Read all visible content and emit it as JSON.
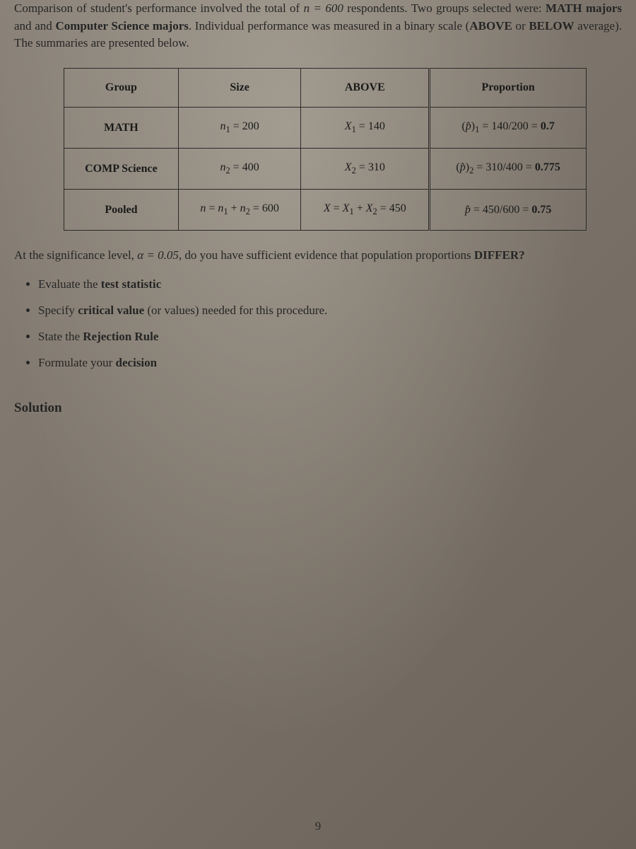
{
  "intro": {
    "prefix": "Comparison of student's performance involved the total of ",
    "n_expr": "n = 600",
    "after_n": " respondents. Two groups selected were: ",
    "group1": "MATH majors",
    "between_groups": " and and ",
    "group2": "Computer Science majors",
    "after_groups": ". Individual performance was measured in a binary scale (",
    "scale1": "ABOVE",
    "scale_or": " or ",
    "scale2": "BELOW",
    "after_scale": " average). The summaries are presented below."
  },
  "table": {
    "headers": {
      "c1": "Group",
      "c2": "Size",
      "c3": "ABOVE",
      "c4": "Proportion"
    },
    "rows": [
      {
        "group": "MATH",
        "size_html": "<span class='ital'>n</span><span class='sub'>1</span> = 200",
        "above_html": "<span class='ital'>X</span><span class='sub'>1</span> = 140",
        "prop_html": "(<span class='ital'>p̂</span>)<span class='sub'>1</span> = 140/200 = <b>0.7</b>"
      },
      {
        "group": "COMP Science",
        "size_html": "<span class='ital'>n</span><span class='sub'>2</span> = 400",
        "above_html": "<span class='ital'>X</span><span class='sub'>2</span> = 310",
        "prop_html": "(<span class='ital'>p̂</span>)<span class='sub'>2</span> = 310/400 = <b>0.775</b>"
      },
      {
        "group": "Pooled",
        "size_html": "<span class='ital'>n</span> = <span class='ital'>n</span><span class='sub'>1</span> + <span class='ital'>n</span><span class='sub'>2</span> = 600",
        "above_html": "<span class='ital'>X</span> = <span class='ital'>X</span><span class='sub'>1</span> + <span class='ital'>X</span><span class='sub'>2</span> = 450",
        "prop_html": "<span class='ital'>p̂</span> = 450/600 = <b>0.75</b>"
      }
    ]
  },
  "question": {
    "prefix": "At the significance level, ",
    "alpha": "α = 0.05",
    "after_alpha": ", do you have sufficient evidence that population proportions ",
    "differ": "DIFFER?",
    "tasks": [
      {
        "pre": "Evaluate the ",
        "bold": "test statistic",
        "post": ""
      },
      {
        "pre": "Specify ",
        "bold": "critical value",
        "post": " (or values) needed for this procedure."
      },
      {
        "pre": "State the ",
        "bold": "Rejection Rule",
        "post": ""
      },
      {
        "pre": "Formulate your ",
        "bold": "decision",
        "post": ""
      }
    ]
  },
  "solution_label": "Solution",
  "page_number": "9"
}
